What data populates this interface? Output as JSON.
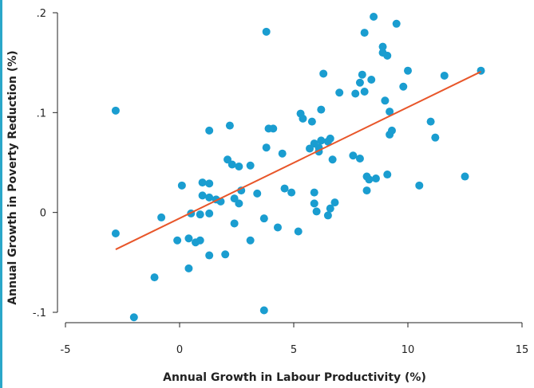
{
  "chart_data": {
    "type": "scatter",
    "title": "",
    "xlabel": "Annual Growth in Labour Productivity (%)",
    "ylabel": "Annual Growth in Poverty Reduction (%)",
    "xlim": [
      -5,
      15
    ],
    "ylim": [
      -0.1,
      0.2
    ],
    "xticks": [
      {
        "value": -5,
        "label": "-5"
      },
      {
        "value": 0,
        "label": "0"
      },
      {
        "value": 5,
        "label": "5"
      },
      {
        "value": 10,
        "label": "10"
      },
      {
        "value": 15,
        "label": "15"
      }
    ],
    "yticks": [
      {
        "value": -0.1,
        "label": "-.1"
      },
      {
        "value": 0,
        "label": "0"
      },
      {
        "value": 0.1,
        "label": ".1"
      },
      {
        "value": 0.2,
        "label": ".2"
      }
    ],
    "grid": false,
    "colors": {
      "points": "#1a9dd0",
      "fit_line": "#e8562a",
      "axis": "#222222"
    },
    "fit_line": {
      "x": [
        -2.8,
        13.2
      ],
      "y": [
        -0.037,
        0.141
      ]
    },
    "points": [
      [
        -2.8,
        0.102
      ],
      [
        -2.8,
        -0.021
      ],
      [
        -2.0,
        -0.105
      ],
      [
        -1.1,
        -0.065
      ],
      [
        -0.8,
        -0.005
      ],
      [
        -0.1,
        -0.028
      ],
      [
        0.1,
        0.027
      ],
      [
        0.4,
        -0.056
      ],
      [
        0.4,
        -0.026
      ],
      [
        0.5,
        -0.001
      ],
      [
        0.7,
        -0.03
      ],
      [
        0.9,
        -0.028
      ],
      [
        0.9,
        -0.002
      ],
      [
        1.0,
        0.017
      ],
      [
        1.0,
        0.03
      ],
      [
        1.3,
        0.082
      ],
      [
        1.3,
        0.029
      ],
      [
        1.3,
        0.015
      ],
      [
        1.3,
        -0.001
      ],
      [
        1.3,
        -0.043
      ],
      [
        1.6,
        0.013
      ],
      [
        1.8,
        0.011
      ],
      [
        2.0,
        -0.042
      ],
      [
        2.1,
        0.053
      ],
      [
        2.2,
        0.087
      ],
      [
        2.3,
        0.048
      ],
      [
        2.4,
        0.014
      ],
      [
        2.4,
        -0.011
      ],
      [
        2.6,
        0.046
      ],
      [
        2.6,
        0.009
      ],
      [
        2.7,
        0.022
      ],
      [
        3.1,
        0.047
      ],
      [
        3.1,
        -0.028
      ],
      [
        3.4,
        0.019
      ],
      [
        3.7,
        -0.006
      ],
      [
        3.7,
        -0.098
      ],
      [
        3.8,
        0.181
      ],
      [
        3.8,
        0.065
      ],
      [
        3.9,
        0.084
      ],
      [
        4.1,
        0.084
      ],
      [
        4.3,
        -0.015
      ],
      [
        4.5,
        0.059
      ],
      [
        4.6,
        0.024
      ],
      [
        4.9,
        0.02
      ],
      [
        5.2,
        -0.019
      ],
      [
        5.3,
        0.099
      ],
      [
        5.4,
        0.094
      ],
      [
        5.7,
        0.064
      ],
      [
        5.8,
        0.091
      ],
      [
        5.9,
        0.069
      ],
      [
        5.9,
        0.02
      ],
      [
        5.9,
        0.009
      ],
      [
        6.0,
        0.001
      ],
      [
        6.1,
        0.065
      ],
      [
        6.1,
        0.061
      ],
      [
        6.2,
        0.072
      ],
      [
        6.2,
        0.103
      ],
      [
        6.3,
        0.139
      ],
      [
        6.5,
        0.071
      ],
      [
        6.5,
        -0.003
      ],
      [
        6.6,
        0.074
      ],
      [
        6.6,
        0.004
      ],
      [
        6.7,
        0.053
      ],
      [
        6.8,
        0.01
      ],
      [
        7.0,
        0.12
      ],
      [
        7.6,
        0.057
      ],
      [
        7.7,
        0.119
      ],
      [
        7.9,
        0.054
      ],
      [
        7.9,
        0.13
      ],
      [
        8.0,
        0.138
      ],
      [
        8.1,
        0.18
      ],
      [
        8.1,
        0.121
      ],
      [
        8.2,
        0.036
      ],
      [
        8.2,
        0.022
      ],
      [
        8.3,
        0.033
      ],
      [
        8.4,
        0.133
      ],
      [
        8.5,
        0.196
      ],
      [
        8.6,
        0.034
      ],
      [
        8.9,
        0.166
      ],
      [
        8.9,
        0.16
      ],
      [
        9.0,
        0.112
      ],
      [
        9.1,
        0.157
      ],
      [
        9.2,
        0.101
      ],
      [
        9.2,
        0.078
      ],
      [
        9.3,
        0.082
      ],
      [
        9.1,
        0.038
      ],
      [
        9.5,
        0.189
      ],
      [
        9.8,
        0.126
      ],
      [
        10.0,
        0.142
      ],
      [
        10.5,
        0.027
      ],
      [
        11.0,
        0.091
      ],
      [
        11.2,
        0.075
      ],
      [
        11.6,
        0.137
      ],
      [
        12.5,
        0.036
      ],
      [
        13.2,
        0.142
      ]
    ]
  }
}
